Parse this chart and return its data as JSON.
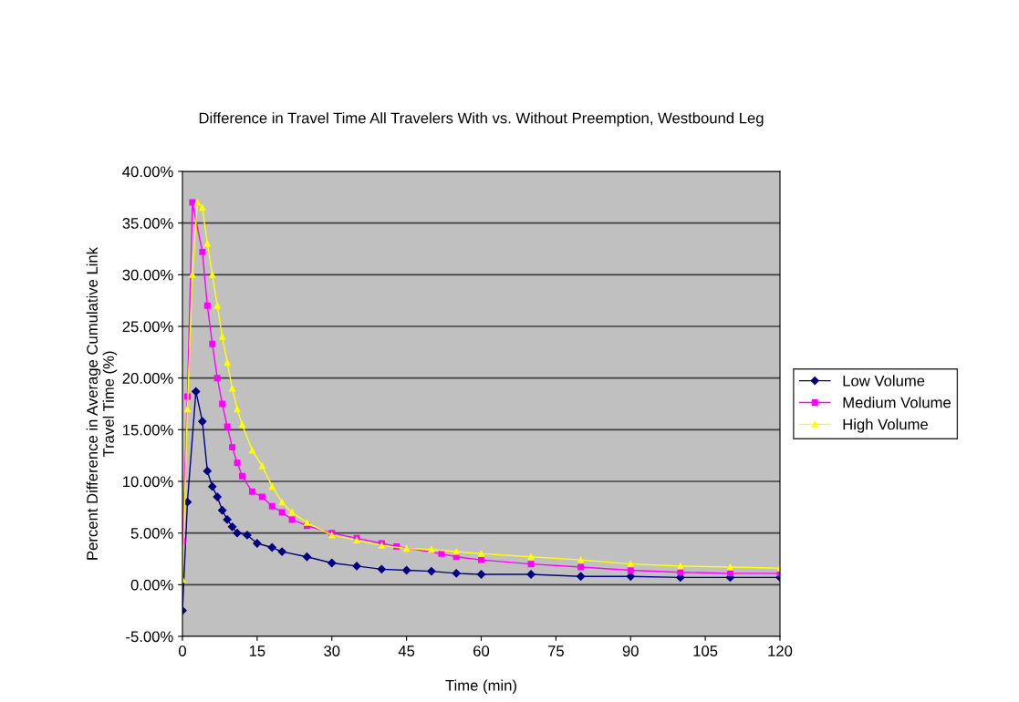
{
  "chart_data": {
    "type": "line",
    "title": "Difference in Travel Time All Travelers With vs. Without Preemption, Westbound Leg",
    "xlabel": "Time (min)",
    "ylabel": "Percent Difference in Average Cumulative Link\nTravel Time (%)",
    "xlim": [
      0,
      120
    ],
    "xticks": [
      0,
      15,
      30,
      45,
      60,
      75,
      90,
      105,
      120
    ],
    "ylim": [
      -5,
      40
    ],
    "yticks": [
      {
        "value": -5,
        "label": "-5.00%"
      },
      {
        "value": 0,
        "label": "0.00%"
      },
      {
        "value": 5,
        "label": "5.00%"
      },
      {
        "value": 10,
        "label": "10.00%"
      },
      {
        "value": 15,
        "label": "15.00%"
      },
      {
        "value": 20,
        "label": "20.00%"
      },
      {
        "value": 25,
        "label": "25.00%"
      },
      {
        "value": 30,
        "label": "30.00%"
      },
      {
        "value": 35,
        "label": "35.00%"
      },
      {
        "value": 40,
        "label": "40.00%"
      }
    ],
    "grid": "y",
    "legend": "right",
    "line_style": "solid",
    "series": [
      {
        "name": "Low Volume",
        "color": "#000080",
        "marker": "diamond",
        "x": [
          0,
          1,
          2.7,
          4,
          5,
          6,
          7,
          8,
          9,
          10,
          11,
          13,
          15,
          18,
          20,
          25,
          30,
          35,
          40,
          45,
          50,
          55,
          60,
          70,
          80,
          90,
          100,
          110,
          120
        ],
        "values": [
          -2.5,
          8,
          18.7,
          15.8,
          11,
          9.5,
          8.5,
          7.2,
          6.3,
          5.6,
          5.0,
          4.8,
          4.0,
          3.6,
          3.2,
          2.7,
          2.1,
          1.8,
          1.5,
          1.4,
          1.3,
          1.1,
          1.0,
          1.0,
          0.8,
          0.8,
          0.7,
          0.7,
          0.7
        ]
      },
      {
        "name": "Medium Volume",
        "color": "#ff00ff",
        "marker": "square",
        "x": [
          0,
          1,
          2,
          4,
          5,
          6,
          7,
          8,
          9,
          10,
          11,
          12,
          14,
          16,
          18,
          20,
          22,
          25,
          30,
          35,
          40,
          43,
          52,
          55,
          60,
          70,
          80,
          90,
          100,
          110,
          120
        ],
        "values": [
          4.2,
          18.2,
          37,
          32.2,
          27,
          23.3,
          20,
          17.5,
          15.3,
          13.3,
          11.8,
          10.5,
          9,
          8.5,
          7.6,
          7,
          6.3,
          5.7,
          5.0,
          4.5,
          4.0,
          3.7,
          3.0,
          2.7,
          2.4,
          2.0,
          1.7,
          1.4,
          1.2,
          1.1,
          1.1
        ]
      },
      {
        "name": "High Volume",
        "color": "#ffff00",
        "marker": "triangle",
        "x": [
          0,
          1,
          2,
          3,
          4,
          5,
          6,
          7,
          8,
          9,
          10,
          11,
          12,
          14,
          16,
          18,
          20,
          22,
          25,
          30,
          35,
          40,
          45,
          50,
          55,
          60,
          70,
          80,
          90,
          100,
          110,
          120
        ],
        "values": [
          0.5,
          17,
          30,
          37,
          36.5,
          33,
          30,
          27,
          24,
          21.5,
          19,
          17,
          15.5,
          13,
          11.5,
          9.5,
          8,
          7,
          6,
          4.8,
          4.3,
          3.8,
          3.5,
          3.4,
          3.2,
          3.0,
          2.7,
          2.4,
          2.0,
          1.8,
          1.7,
          1.6
        ]
      }
    ]
  }
}
